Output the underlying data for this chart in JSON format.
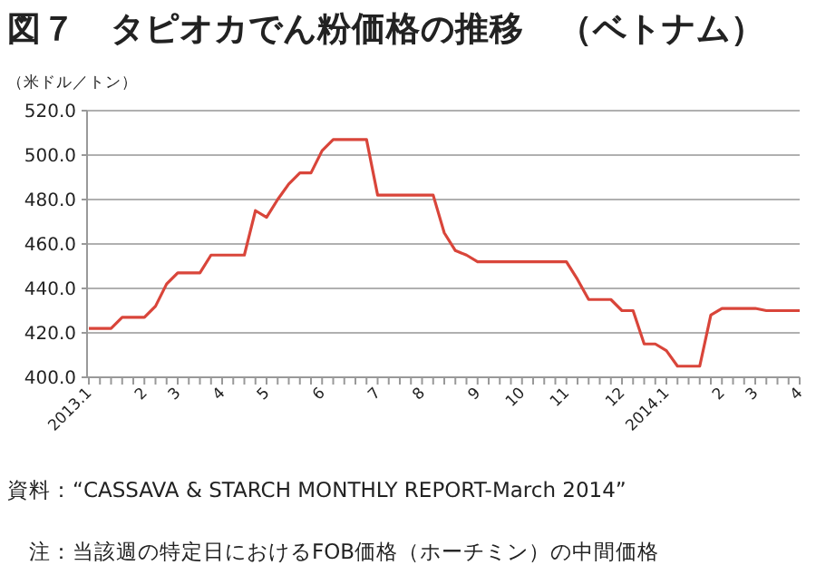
{
  "chart_data": {
    "type": "line",
    "title": "図７　タピオカでん粉価格の推移　（ベトナム）",
    "ylabel": "（米ドル／トン）",
    "categories": [
      "2013.1",
      null,
      null,
      null,
      null,
      "2",
      null,
      null,
      "3",
      null,
      null,
      null,
      "4",
      null,
      null,
      null,
      "5",
      null,
      null,
      null,
      null,
      "6",
      null,
      null,
      null,
      null,
      "7",
      null,
      null,
      null,
      "8",
      null,
      null,
      null,
      null,
      "9",
      null,
      null,
      null,
      "10",
      null,
      null,
      null,
      "11",
      null,
      null,
      null,
      null,
      "12",
      null,
      null,
      null,
      "2014.1",
      null,
      null,
      null,
      null,
      "2",
      null,
      null,
      "3",
      null,
      null,
      null,
      "4"
    ],
    "values": [
      422,
      422,
      422,
      427,
      427,
      427,
      432,
      442,
      447,
      447,
      447,
      455,
      455,
      455,
      455,
      475,
      472,
      480,
      487,
      492,
      492,
      502,
      507,
      507,
      507,
      507,
      482,
      482,
      482,
      482,
      482,
      482,
      465,
      457,
      455,
      452,
      452,
      452,
      452,
      452,
      452,
      452,
      452,
      452,
      444,
      435,
      435,
      435,
      430,
      430,
      415,
      415,
      412,
      405,
      405,
      405,
      428,
      431,
      431,
      431,
      431,
      430,
      430,
      430,
      430
    ],
    "color": "#d9453a",
    "ylim": [
      400,
      520
    ],
    "yticks": [
      {
        "value": 400,
        "label": "400.0"
      },
      {
        "value": 420,
        "label": "420.0"
      },
      {
        "value": 440,
        "label": "440.0"
      },
      {
        "value": 460,
        "label": "460.0"
      },
      {
        "value": 480,
        "label": "480.0"
      },
      {
        "value": 500,
        "label": "500.0"
      },
      {
        "value": 520,
        "label": "520.0"
      }
    ],
    "grid": "y",
    "marker": "none",
    "line_style": "solid",
    "annotations": [
      "資料：“CASSAVA & STARCH MONTHLY REPORT-March 2014”",
      "注：当該週の特定日におけるFOB価格（ホーチミン）の中間価格"
    ]
  }
}
